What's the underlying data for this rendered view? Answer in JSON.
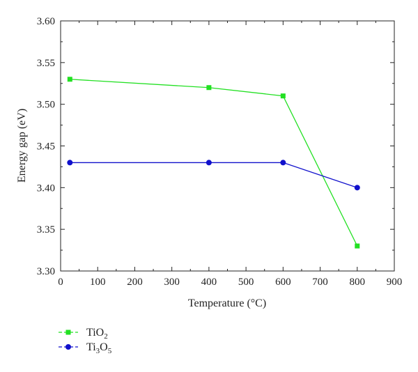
{
  "chart_data": {
    "type": "line",
    "title": "",
    "xlabel": "Temperature (°C)",
    "ylabel": "Energy gap (eV)",
    "xlim": [
      0,
      900
    ],
    "ylim": [
      3.3,
      3.6
    ],
    "xticks": [
      "0",
      "100",
      "200",
      "300",
      "400",
      "500",
      "600",
      "700",
      "800",
      "900"
    ],
    "yticks": [
      "3.30",
      "3.35",
      "3.40",
      "3.45",
      "3.50",
      "3.55",
      "3.60"
    ],
    "grid": false,
    "legend_position": "bottom-left, below plot",
    "series": [
      {
        "name": "TiO2",
        "label_main": "TiO",
        "label_sub": "2",
        "color": "#22e022",
        "marker": "square",
        "x": [
          25,
          400,
          600,
          800
        ],
        "y": [
          3.53,
          3.52,
          3.51,
          3.33
        ]
      },
      {
        "name": "Ti3O5",
        "label_parts": [
          "Ti",
          "3",
          "O",
          "5"
        ],
        "color": "#1010cc",
        "marker": "circle",
        "x": [
          25,
          400,
          600,
          800
        ],
        "y": [
          3.43,
          3.43,
          3.43,
          3.4
        ]
      }
    ]
  }
}
